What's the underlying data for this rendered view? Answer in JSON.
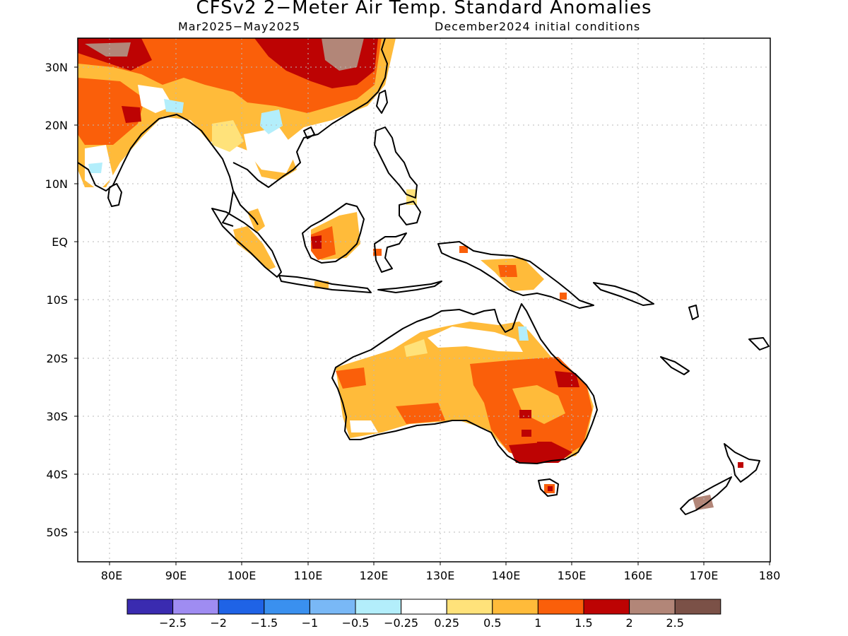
{
  "title": "CFSv2 2−Meter Air Temp. Standard Anomalies",
  "subtitle_left": "Mar2025−May2025",
  "subtitle_right": "December2024 initial conditions",
  "lat_labels": [
    "30N",
    "20N",
    "10N",
    "EQ",
    "10S",
    "20S",
    "30S",
    "40S",
    "50S"
  ],
  "lon_labels": [
    "80E",
    "90E",
    "100E",
    "110E",
    "120E",
    "130E",
    "140E",
    "150E",
    "160E",
    "170E",
    "180"
  ],
  "colorbar": {
    "colors": [
      "#3a2bb0",
      "#9f8cf2",
      "#1f63e6",
      "#3a90ef",
      "#79b8f6",
      "#b3eefb",
      "#ffffff",
      "#ffe27a",
      "#ffbb3a",
      "#fa5f0a",
      "#bd0303",
      "#b28678",
      "#7b5147"
    ],
    "labels": [
      "−2.5",
      "−2",
      "−1.5",
      "−1",
      "−0.5",
      "−0.25",
      "0.25",
      "0.5",
      "1",
      "1.5",
      "2",
      "2.5"
    ]
  }
}
